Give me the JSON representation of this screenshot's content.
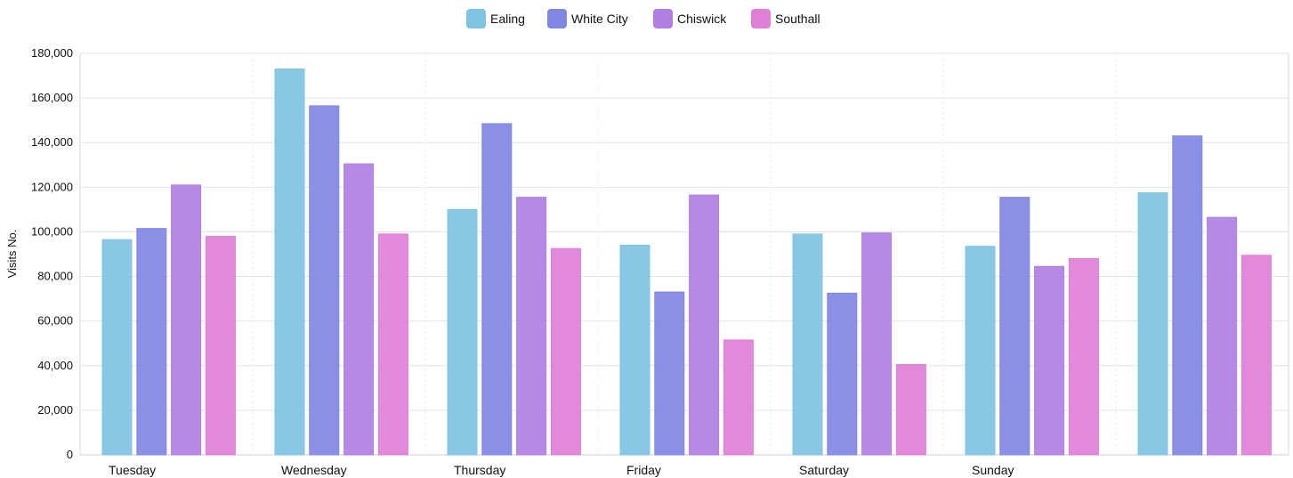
{
  "chart_data": {
    "type": "bar",
    "categories": [
      "Tuesday",
      "Wednesday",
      "Thursday",
      "Friday",
      "Saturday",
      "Sunday",
      ""
    ],
    "series": [
      {
        "name": "Ealing",
        "color": "#7fc3e2",
        "values": [
          96500,
          173000,
          110000,
          94000,
          99000,
          93500,
          117500
        ]
      },
      {
        "name": "White City",
        "color": "#8087e3",
        "values": [
          101500,
          156500,
          148500,
          73000,
          72500,
          115500,
          143000
        ]
      },
      {
        "name": "Chiswick",
        "color": "#b07fe3",
        "values": [
          121000,
          130500,
          115500,
          116500,
          99500,
          84500,
          106500
        ]
      },
      {
        "name": "Southall",
        "color": "#e07fd8",
        "values": [
          98000,
          99000,
          92500,
          51500,
          40500,
          88000,
          89500
        ]
      }
    ],
    "title": "",
    "xlabel": "",
    "ylabel": "Visits No.",
    "ylim": [
      0,
      180000
    ],
    "yticks": [
      "0",
      "20,000",
      "40,000",
      "60,000",
      "80,000",
      "100,000",
      "120,000",
      "140,000",
      "160,000",
      "180,000"
    ],
    "ytick_values": [
      0,
      20000,
      40000,
      60000,
      80000,
      100000,
      120000,
      140000,
      160000,
      180000
    ],
    "grid": true,
    "legend": "top-center"
  }
}
